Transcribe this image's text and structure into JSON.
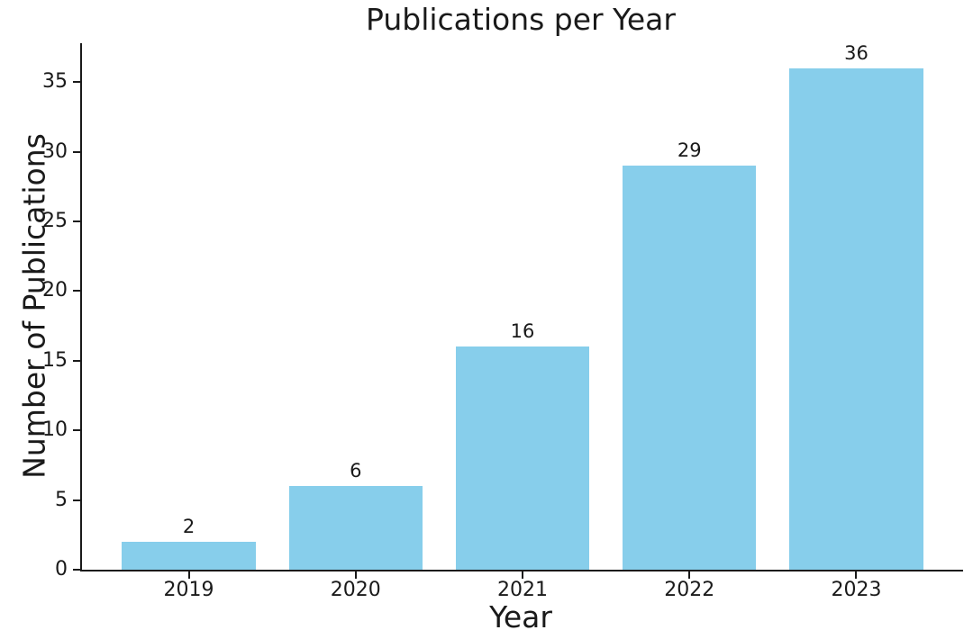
{
  "figure": {
    "background": "#ffffff"
  },
  "chart_data": {
    "type": "bar",
    "title": "Publications per Year",
    "xlabel": "Year",
    "ylabel": "Number of Publications",
    "categories": [
      "2019",
      "2020",
      "2021",
      "2022",
      "2023"
    ],
    "values": [
      2,
      6,
      16,
      29,
      36
    ],
    "bar_value_labels": [
      "2",
      "6",
      "16",
      "29",
      "36"
    ],
    "yticks": [
      0,
      5,
      10,
      15,
      20,
      25,
      30,
      35
    ],
    "ylim": [
      0,
      37.8
    ],
    "grid": false,
    "legend": "none",
    "bar_color": "#87CEEB",
    "axis_color": "#1a1a1a",
    "text_color": "#1a1a1a"
  }
}
